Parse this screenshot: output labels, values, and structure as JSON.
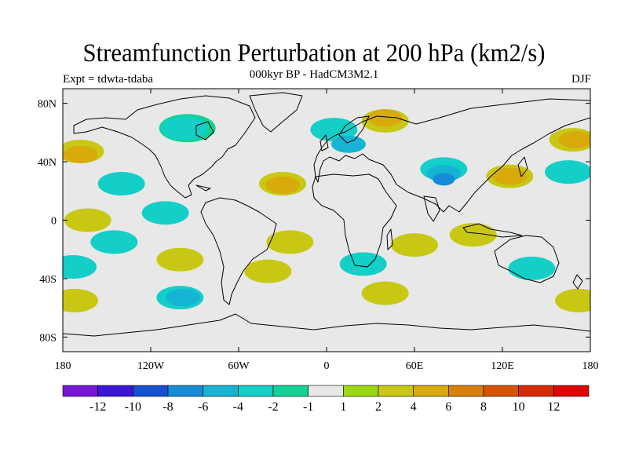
{
  "title": "Streamfunction Perturbation at 200 hPa (km2/s)",
  "subtitle": "000kyr BP - HadCM3M2.1",
  "expt_label": "Expt = tdwta-tdaba",
  "season": "DJF",
  "lat_labels": [
    "80N",
    "40N",
    "0",
    "40S",
    "80S"
  ],
  "lon_labels": [
    "180",
    "120W",
    "60W",
    "0",
    "60E",
    "120E",
    "180"
  ],
  "colorbar": {
    "labels": [
      "-12",
      "-10",
      "-8",
      "-6",
      "-4",
      "-2",
      "-1",
      "1",
      "2",
      "4",
      "6",
      "8",
      "10",
      "12"
    ],
    "colors": [
      "#7a14d8",
      "#3a14d8",
      "#1450d2",
      "#148cd8",
      "#14b4d2",
      "#14cec8",
      "#14d296",
      "#e8e8e8",
      "#9ad810",
      "#c8c814",
      "#d8aa0c",
      "#d88008",
      "#d85404",
      "#d82a04",
      "#e00606"
    ]
  },
  "map_features": {
    "ocean_color": "#e8e8e8",
    "coastline_color": "#000000",
    "blobs": [
      {
        "level": "2",
        "lon": -168,
        "lat": 47
      },
      {
        "level": "4",
        "lon": -168,
        "lat": 45
      },
      {
        "level": "-2",
        "lon": -140,
        "lat": 25
      },
      {
        "level": "-1",
        "lon": -95,
        "lat": 63
      },
      {
        "level": "-2",
        "lon": -97,
        "lat": 63
      },
      {
        "level": "2",
        "lon": -30,
        "lat": 25
      },
      {
        "level": "4",
        "lon": -30,
        "lat": 24
      },
      {
        "level": "-2",
        "lon": 5,
        "lat": 62
      },
      {
        "level": "-4",
        "lon": 15,
        "lat": 52
      },
      {
        "level": "2",
        "lon": 40,
        "lat": 68
      },
      {
        "level": "4",
        "lon": 40,
        "lat": 70
      },
      {
        "level": "-2",
        "lon": 80,
        "lat": 35
      },
      {
        "level": "-4",
        "lon": 80,
        "lat": 32
      },
      {
        "level": "-6",
        "lon": 80,
        "lat": 28
      },
      {
        "level": "2",
        "lon": 125,
        "lat": 30
      },
      {
        "level": "4",
        "lon": 125,
        "lat": 30
      },
      {
        "level": "2",
        "lon": 168,
        "lat": 55
      },
      {
        "level": "4",
        "lon": 170,
        "lat": 55
      },
      {
        "level": "-2",
        "lon": 165,
        "lat": 33
      },
      {
        "level": "2",
        "lon": -25,
        "lat": -15
      },
      {
        "level": "2",
        "lon": -100,
        "lat": -27
      },
      {
        "level": "2",
        "lon": -40,
        "lat": -35
      },
      {
        "level": "2",
        "lon": 60,
        "lat": -17
      },
      {
        "level": "2",
        "lon": 100,
        "lat": -10
      },
      {
        "level": "-2",
        "lon": -100,
        "lat": -53
      },
      {
        "level": "-4",
        "lon": -98,
        "lat": -53
      },
      {
        "level": "2",
        "lon": 40,
        "lat": -50
      },
      {
        "level": "-2",
        "lon": 140,
        "lat": -33
      },
      {
        "level": "2",
        "lon": 172,
        "lat": -55
      },
      {
        "level": "2",
        "lon": -172,
        "lat": -55
      },
      {
        "level": "2",
        "lon": -163,
        "lat": 0
      },
      {
        "level": "-2",
        "lon": -110,
        "lat": 5
      },
      {
        "level": "-2",
        "lon": -145,
        "lat": -15
      },
      {
        "level": "-2",
        "lon": -173,
        "lat": -32
      },
      {
        "level": "-2",
        "lon": 25,
        "lat": -30
      }
    ]
  }
}
